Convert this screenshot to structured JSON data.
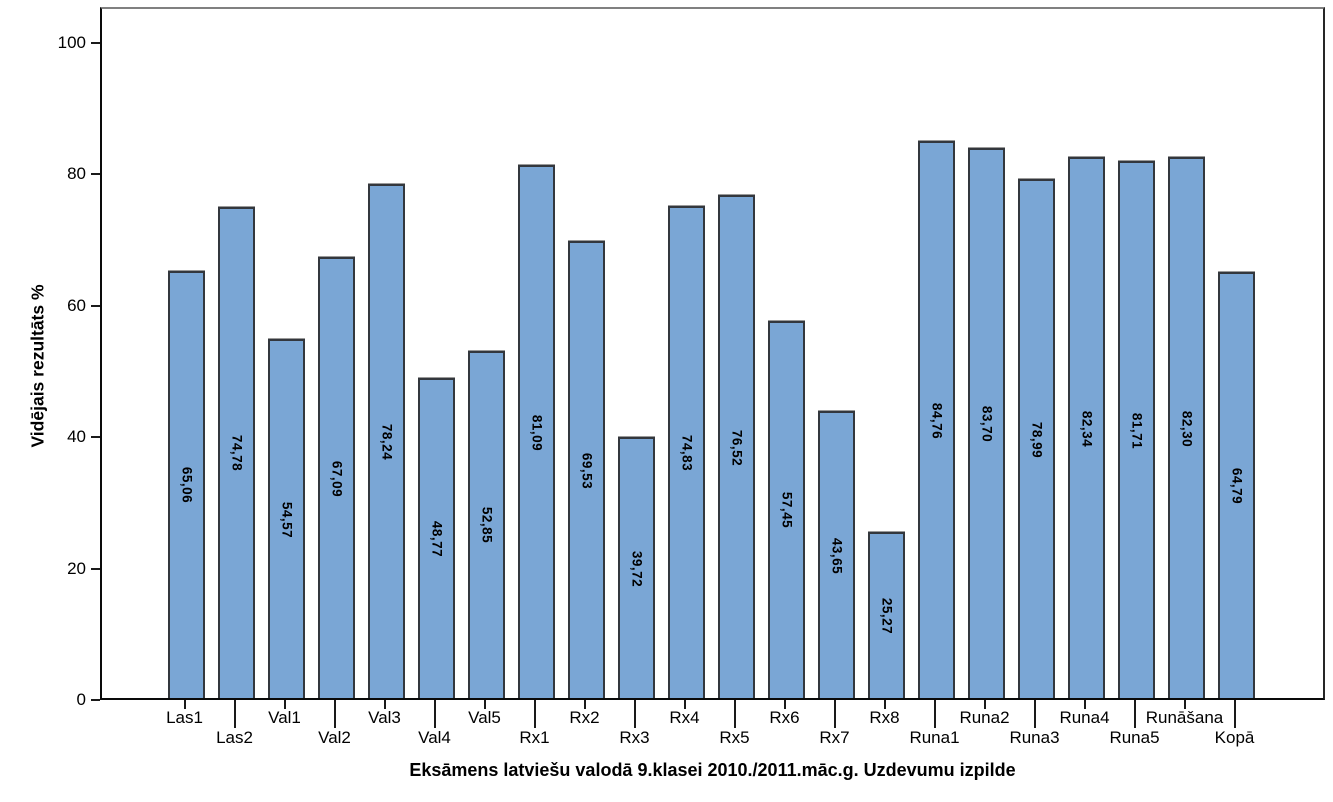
{
  "chart_data": {
    "type": "bar",
    "title": "Eksāmens latviešu valodā 9.klasei 2010./2011.māc.g. Uzdevumu izpilde",
    "xlabel": "Eksāmens latviešu valodā 9.klasei 2010./2011.māc.g. Uzdevumu izpilde",
    "ylabel": "Vidējais rezultāts %",
    "categories": [
      "Las1",
      "Las2",
      "Val1",
      "Val2",
      "Val3",
      "Val4",
      "Val5",
      "Rx1",
      "Rx2",
      "Rx3",
      "Rx4",
      "Rx5",
      "Rx6",
      "Rx7",
      "Rx8",
      "Runa1",
      "Runa2",
      "Runa3",
      "Runa4",
      "Runa5",
      "Runāšana",
      "Kopā"
    ],
    "values": [
      65.06,
      74.78,
      54.57,
      67.09,
      78.24,
      48.77,
      52.85,
      81.09,
      69.53,
      39.72,
      74.83,
      76.52,
      57.45,
      43.65,
      25.27,
      84.76,
      83.7,
      78.99,
      82.34,
      81.71,
      82.3,
      64.79
    ],
    "value_labels": [
      "65,06",
      "74,78",
      "54,57",
      "67,09",
      "78,24",
      "48,77",
      "52,85",
      "81,09",
      "69,53",
      "39,72",
      "74,83",
      "76,52",
      "57,45",
      "43,65",
      "25,27",
      "84,76",
      "83,70",
      "78,99",
      "82,34",
      "81,71",
      "82,30",
      "64,79"
    ],
    "yticks": [
      0,
      20,
      40,
      60,
      80,
      100
    ],
    "ylim": [
      0,
      105.5
    ],
    "grid": false,
    "legend_position": "none",
    "bar_fill_color": "#7AA6D5",
    "bar_border_color": "#33373d",
    "value_label_rotation_deg": 90,
    "staggered_x_labels": true
  }
}
